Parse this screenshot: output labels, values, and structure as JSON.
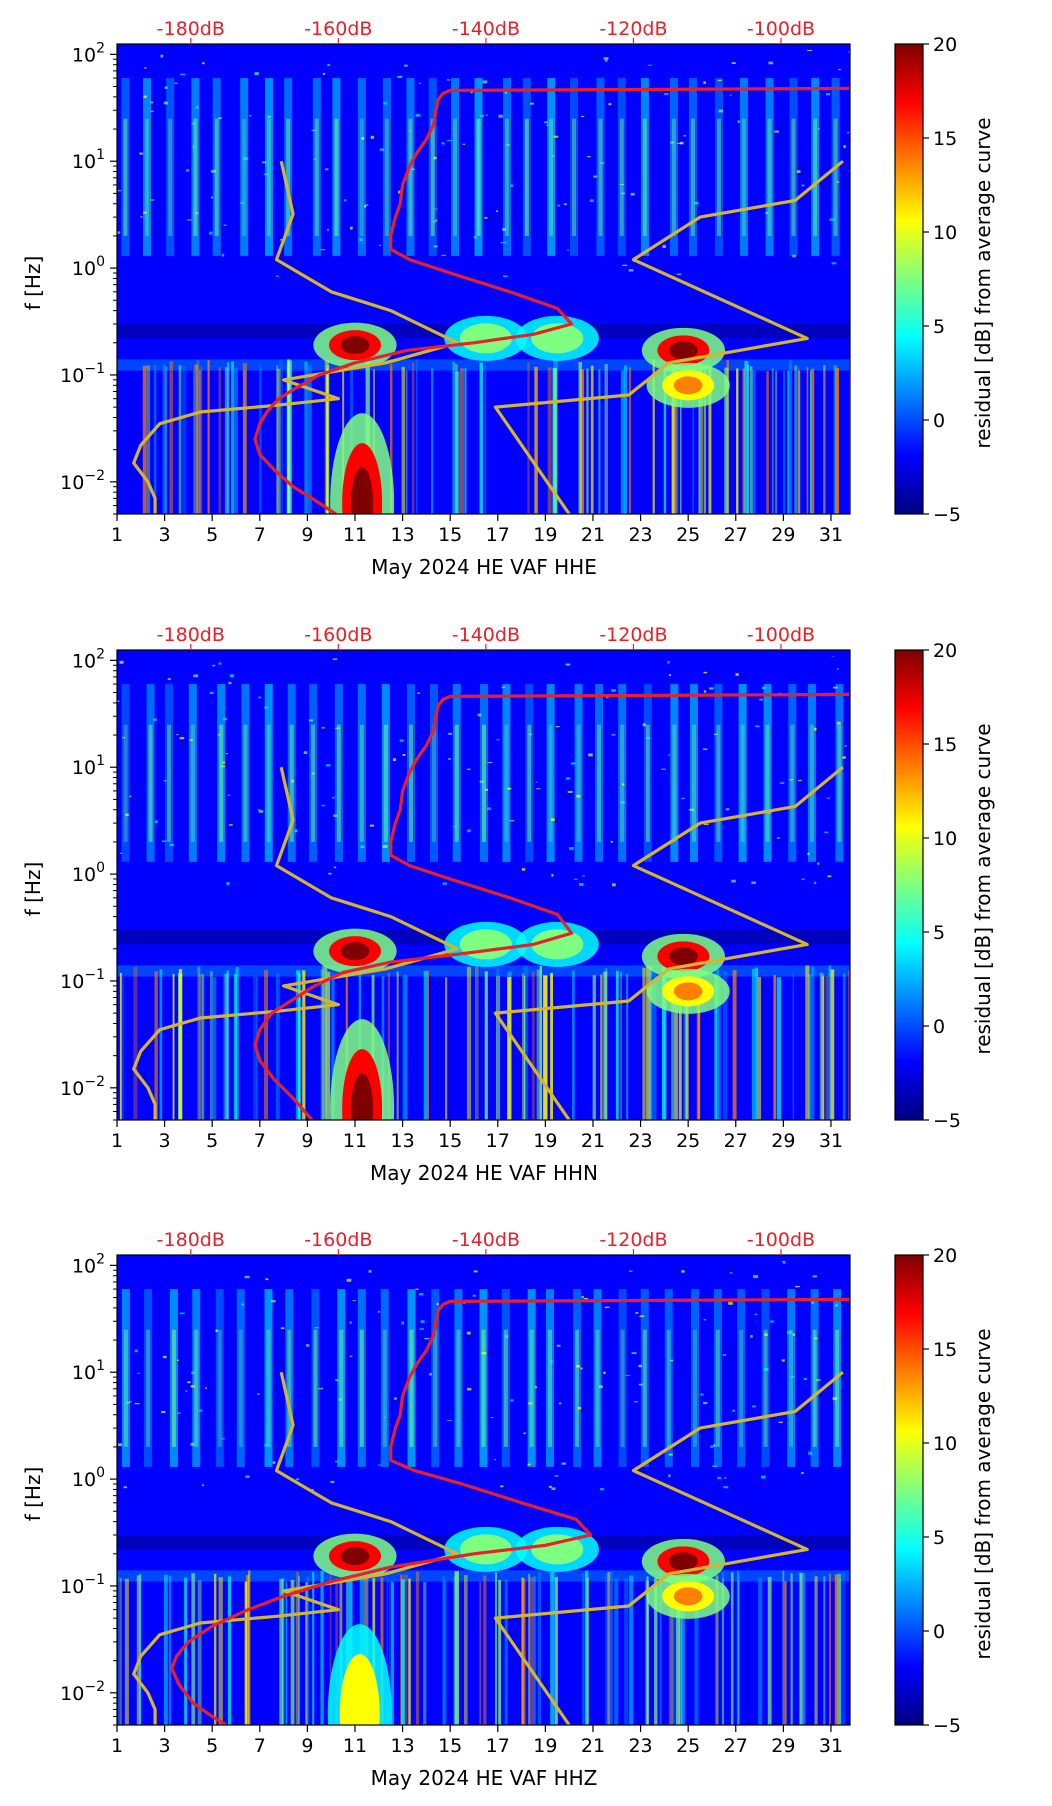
{
  "figure_title": "",
  "colors": {
    "noise_model": "#d4b530",
    "average_curve": "#e8202a",
    "top_axis_text": "#e8202a",
    "axis": "#000000",
    "colormap": [
      "#00007f",
      "#0000ff",
      "#007fff",
      "#00ffff",
      "#7fff7f",
      "#ffff00",
      "#ff7f00",
      "#ff0000",
      "#7f0000"
    ]
  },
  "chart_data": [
    {
      "type": "heatmap",
      "title": "",
      "xlabel": "May 2024 HE VAF  HHE",
      "ylabel": "f [Hz]",
      "xlim": [
        1,
        31.8
      ],
      "ylim": [
        0.005,
        125
      ],
      "yscale": "log",
      "x_ticks": [
        "1",
        "3",
        "5",
        "7",
        "9",
        "11",
        "13",
        "15",
        "17",
        "19",
        "21",
        "23",
        "25",
        "27",
        "29",
        "31"
      ],
      "y_ticks": [
        {
          "base": "10",
          "exp": "−2",
          "value": 0.01
        },
        {
          "base": "10",
          "exp": "−1",
          "value": 0.1
        },
        {
          "base": "10",
          "exp": "0",
          "value": 1
        },
        {
          "base": "10",
          "exp": "1",
          "value": 10
        },
        {
          "base": "10",
          "exp": "2",
          "value": 100
        }
      ],
      "top_axis": {
        "labels": [
          "-180dB",
          "-160dB",
          "-140dB",
          "-120dB",
          "-100dB"
        ],
        "x_positions": [
          4.1,
          10.3,
          16.5,
          22.7,
          28.9
        ]
      },
      "colorbar": {
        "label": "residual [dB] from average curve",
        "range": [
          -5,
          20
        ],
        "ticks": [
          "−5",
          "0",
          "5",
          "10",
          "15",
          "20"
        ],
        "tick_values": [
          -5,
          0,
          5,
          10,
          15,
          20
        ]
      },
      "hotspots": [
        {
          "x": 11.0,
          "f": 0.19,
          "strength": 20
        },
        {
          "x": 24.8,
          "f": 0.17,
          "strength": 20
        },
        {
          "x": 25.0,
          "f": 0.08,
          "strength": 14
        },
        {
          "x": 11.3,
          "f": 0.008,
          "strength": 20
        },
        {
          "x": 16.5,
          "f": 0.22,
          "strength": 9
        },
        {
          "x": 19.5,
          "f": 0.22,
          "strength": 9
        }
      ],
      "series": [
        {
          "name": "noise model low",
          "color": "#d4b530",
          "points": [
            [
              7.9,
              10
            ],
            [
              8.4,
              3.2
            ],
            [
              7.7,
              1.2
            ],
            [
              10,
              0.6
            ],
            [
              12.5,
              0.4
            ],
            [
              15.3,
              0.2
            ],
            [
              12.3,
              0.13
            ],
            [
              8.0,
              0.09
            ],
            [
              10.3,
              0.06
            ],
            [
              7.7,
              0.052
            ],
            [
              4.5,
              0.045
            ],
            [
              2.8,
              0.035
            ],
            [
              2.0,
              0.022
            ],
            [
              1.7,
              0.015
            ],
            [
              2.3,
              0.01
            ],
            [
              2.6,
              0.007
            ],
            [
              2.6,
              0.005
            ]
          ]
        },
        {
          "name": "noise model high",
          "color": "#d4b530",
          "points": [
            [
              20,
              0.005
            ],
            [
              16.9,
              0.05
            ],
            [
              22.5,
              0.065
            ],
            [
              24.2,
              0.13
            ],
            [
              30,
              0.22
            ],
            [
              22.7,
              1.2
            ],
            [
              25.5,
              3.0
            ],
            [
              29.5,
              4.3
            ],
            [
              31.5,
              10
            ]
          ]
        },
        {
          "name": "average curve",
          "color": "#e8202a",
          "points": [
            [
              31.8,
              48
            ],
            [
              15.0,
              46
            ],
            [
              14.7,
              43
            ],
            [
              14.5,
              38
            ],
            [
              14.4,
              30
            ],
            [
              14.3,
              22
            ],
            [
              14.0,
              16
            ],
            [
              13.6,
              12
            ],
            [
              13.3,
              9
            ],
            [
              13.0,
              6
            ],
            [
              12.9,
              4
            ],
            [
              12.7,
              3
            ],
            [
              12.5,
              2
            ],
            [
              12.5,
              1.5
            ],
            [
              13.3,
              1.2
            ],
            [
              15.0,
              0.9
            ],
            [
              17.5,
              0.6
            ],
            [
              19.5,
              0.42
            ],
            [
              20.1,
              0.3
            ],
            [
              18.5,
              0.24
            ],
            [
              16.0,
              0.2
            ],
            [
              13.2,
              0.17
            ],
            [
              11.0,
              0.13
            ],
            [
              9.5,
              0.1
            ],
            [
              8.5,
              0.075
            ],
            [
              7.8,
              0.06
            ],
            [
              7.3,
              0.045
            ],
            [
              7.0,
              0.035
            ],
            [
              6.8,
              0.025
            ],
            [
              7.0,
              0.018
            ],
            [
              7.6,
              0.013
            ],
            [
              8.4,
              0.009
            ],
            [
              9.2,
              0.007
            ],
            [
              10.2,
              0.005
            ]
          ]
        }
      ]
    },
    {
      "type": "heatmap",
      "title": "",
      "xlabel": "May 2024 HE VAF  HHN",
      "ylabel": "f [Hz]",
      "xlim": [
        1,
        31.8
      ],
      "ylim": [
        0.005,
        125
      ],
      "yscale": "log",
      "x_ticks": [
        "1",
        "3",
        "5",
        "7",
        "9",
        "11",
        "13",
        "15",
        "17",
        "19",
        "21",
        "23",
        "25",
        "27",
        "29",
        "31"
      ],
      "y_ticks": [
        {
          "base": "10",
          "exp": "−2",
          "value": 0.01
        },
        {
          "base": "10",
          "exp": "−1",
          "value": 0.1
        },
        {
          "base": "10",
          "exp": "0",
          "value": 1
        },
        {
          "base": "10",
          "exp": "1",
          "value": 10
        },
        {
          "base": "10",
          "exp": "2",
          "value": 100
        }
      ],
      "top_axis": {
        "labels": [
          "-180dB",
          "-160dB",
          "-140dB",
          "-120dB",
          "-100dB"
        ],
        "x_positions": [
          4.1,
          10.3,
          16.5,
          22.7,
          28.9
        ]
      },
      "colorbar": {
        "label": "residual [dB] from average curve",
        "range": [
          -5,
          20
        ],
        "ticks": [
          "−5",
          "0",
          "5",
          "10",
          "15",
          "20"
        ],
        "tick_values": [
          -5,
          0,
          5,
          10,
          15,
          20
        ]
      },
      "hotspots": [
        {
          "x": 11.0,
          "f": 0.19,
          "strength": 20
        },
        {
          "x": 24.8,
          "f": 0.17,
          "strength": 20
        },
        {
          "x": 25.0,
          "f": 0.08,
          "strength": 14
        },
        {
          "x": 11.3,
          "f": 0.008,
          "strength": 20
        },
        {
          "x": 16.5,
          "f": 0.22,
          "strength": 9
        },
        {
          "x": 19.5,
          "f": 0.22,
          "strength": 9
        }
      ],
      "series": [
        {
          "name": "noise model low",
          "color": "#d4b530",
          "points": [
            [
              7.9,
              10
            ],
            [
              8.4,
              3.2
            ],
            [
              7.7,
              1.2
            ],
            [
              10,
              0.6
            ],
            [
              12.5,
              0.4
            ],
            [
              15.3,
              0.2
            ],
            [
              12.3,
              0.13
            ],
            [
              8.0,
              0.09
            ],
            [
              10.3,
              0.06
            ],
            [
              7.7,
              0.052
            ],
            [
              4.5,
              0.045
            ],
            [
              2.8,
              0.035
            ],
            [
              2.0,
              0.022
            ],
            [
              1.7,
              0.015
            ],
            [
              2.3,
              0.01
            ],
            [
              2.6,
              0.007
            ],
            [
              2.6,
              0.005
            ]
          ]
        },
        {
          "name": "noise model high",
          "color": "#d4b530",
          "points": [
            [
              20,
              0.005
            ],
            [
              16.9,
              0.05
            ],
            [
              22.5,
              0.065
            ],
            [
              24.2,
              0.13
            ],
            [
              30,
              0.22
            ],
            [
              22.7,
              1.2
            ],
            [
              25.5,
              3.0
            ],
            [
              29.5,
              4.3
            ],
            [
              31.5,
              10
            ]
          ]
        },
        {
          "name": "average curve",
          "color": "#e8202a",
          "points": [
            [
              31.8,
              48
            ],
            [
              15.0,
              46
            ],
            [
              14.7,
              43
            ],
            [
              14.5,
              38
            ],
            [
              14.4,
              30
            ],
            [
              14.3,
              22
            ],
            [
              14.0,
              16
            ],
            [
              13.6,
              12
            ],
            [
              13.3,
              9
            ],
            [
              13.0,
              6
            ],
            [
              12.9,
              4
            ],
            [
              12.7,
              3
            ],
            [
              12.5,
              2
            ],
            [
              12.5,
              1.5
            ],
            [
              13.3,
              1.2
            ],
            [
              15.0,
              0.9
            ],
            [
              17.5,
              0.6
            ],
            [
              19.5,
              0.42
            ],
            [
              20.1,
              0.28
            ],
            [
              18.5,
              0.22
            ],
            [
              15.5,
              0.18
            ],
            [
              12.5,
              0.15
            ],
            [
              10.5,
              0.12
            ],
            [
              9.3,
              0.09
            ],
            [
              8.3,
              0.065
            ],
            [
              7.5,
              0.05
            ],
            [
              7.0,
              0.035
            ],
            [
              6.8,
              0.025
            ],
            [
              7.0,
              0.018
            ],
            [
              7.6,
              0.012
            ],
            [
              8.4,
              0.008
            ],
            [
              9.2,
              0.005
            ]
          ]
        }
      ]
    },
    {
      "type": "heatmap",
      "title": "",
      "xlabel": "May 2024 HE VAF  HHZ",
      "ylabel": "f [Hz]",
      "xlim": [
        1,
        31.8
      ],
      "ylim": [
        0.005,
        125
      ],
      "yscale": "log",
      "x_ticks": [
        "1",
        "3",
        "5",
        "7",
        "9",
        "11",
        "13",
        "15",
        "17",
        "19",
        "21",
        "23",
        "25",
        "27",
        "29",
        "31"
      ],
      "y_ticks": [
        {
          "base": "10",
          "exp": "−2",
          "value": 0.01
        },
        {
          "base": "10",
          "exp": "−1",
          "value": 0.1
        },
        {
          "base": "10",
          "exp": "0",
          "value": 1
        },
        {
          "base": "10",
          "exp": "1",
          "value": 10
        },
        {
          "base": "10",
          "exp": "2",
          "value": 100
        }
      ],
      "top_axis": {
        "labels": [
          "-180dB",
          "-160dB",
          "-140dB",
          "-120dB",
          "-100dB"
        ],
        "x_positions": [
          4.1,
          10.3,
          16.5,
          22.7,
          28.9
        ]
      },
      "colorbar": {
        "label": "residual [dB] from average curve",
        "range": [
          -5,
          20
        ],
        "ticks": [
          "−5",
          "0",
          "5",
          "10",
          "15",
          "20"
        ],
        "tick_values": [
          -5,
          0,
          5,
          10,
          15,
          20
        ]
      },
      "hotspots": [
        {
          "x": 11.0,
          "f": 0.19,
          "strength": 20
        },
        {
          "x": 24.8,
          "f": 0.17,
          "strength": 20
        },
        {
          "x": 25.0,
          "f": 0.08,
          "strength": 14
        },
        {
          "x": 11.2,
          "f": 0.008,
          "strength": 12
        },
        {
          "x": 16.5,
          "f": 0.22,
          "strength": 9
        },
        {
          "x": 19.5,
          "f": 0.22,
          "strength": 9
        }
      ],
      "series": [
        {
          "name": "noise model low",
          "color": "#d4b530",
          "points": [
            [
              7.9,
              10
            ],
            [
              8.4,
              3.2
            ],
            [
              7.7,
              1.2
            ],
            [
              10,
              0.6
            ],
            [
              12.5,
              0.4
            ],
            [
              15.3,
              0.2
            ],
            [
              12.3,
              0.13
            ],
            [
              8.0,
              0.09
            ],
            [
              10.3,
              0.06
            ],
            [
              7.7,
              0.052
            ],
            [
              4.5,
              0.045
            ],
            [
              2.8,
              0.035
            ],
            [
              2.0,
              0.022
            ],
            [
              1.7,
              0.015
            ],
            [
              2.3,
              0.01
            ],
            [
              2.6,
              0.007
            ],
            [
              2.6,
              0.005
            ]
          ]
        },
        {
          "name": "noise model high",
          "color": "#d4b530",
          "points": [
            [
              20,
              0.005
            ],
            [
              16.9,
              0.05
            ],
            [
              22.5,
              0.065
            ],
            [
              24.2,
              0.13
            ],
            [
              30,
              0.22
            ],
            [
              22.7,
              1.2
            ],
            [
              25.5,
              3.0
            ],
            [
              29.5,
              4.3
            ],
            [
              31.5,
              10
            ]
          ]
        },
        {
          "name": "average curve",
          "color": "#e8202a",
          "points": [
            [
              31.8,
              48
            ],
            [
              15.0,
              46
            ],
            [
              14.7,
              43
            ],
            [
              14.5,
              38
            ],
            [
              14.4,
              30
            ],
            [
              14.3,
              22
            ],
            [
              14.0,
              16
            ],
            [
              13.6,
              12
            ],
            [
              13.3,
              9
            ],
            [
              13.0,
              6
            ],
            [
              12.9,
              4
            ],
            [
              12.7,
              3
            ],
            [
              12.5,
              2
            ],
            [
              12.5,
              1.5
            ],
            [
              13.5,
              1.2
            ],
            [
              15.5,
              0.9
            ],
            [
              18.0,
              0.6
            ],
            [
              20.3,
              0.42
            ],
            [
              20.9,
              0.3
            ],
            [
              19.0,
              0.24
            ],
            [
              16.0,
              0.2
            ],
            [
              12.5,
              0.15
            ],
            [
              10.0,
              0.11
            ],
            [
              8.0,
              0.08
            ],
            [
              6.5,
              0.06
            ],
            [
              5.0,
              0.042
            ],
            [
              4.0,
              0.03
            ],
            [
              3.5,
              0.022
            ],
            [
              3.3,
              0.017
            ],
            [
              3.6,
              0.012
            ],
            [
              4.2,
              0.008
            ],
            [
              5.0,
              0.006
            ],
            [
              5.6,
              0.005
            ]
          ]
        }
      ]
    }
  ]
}
